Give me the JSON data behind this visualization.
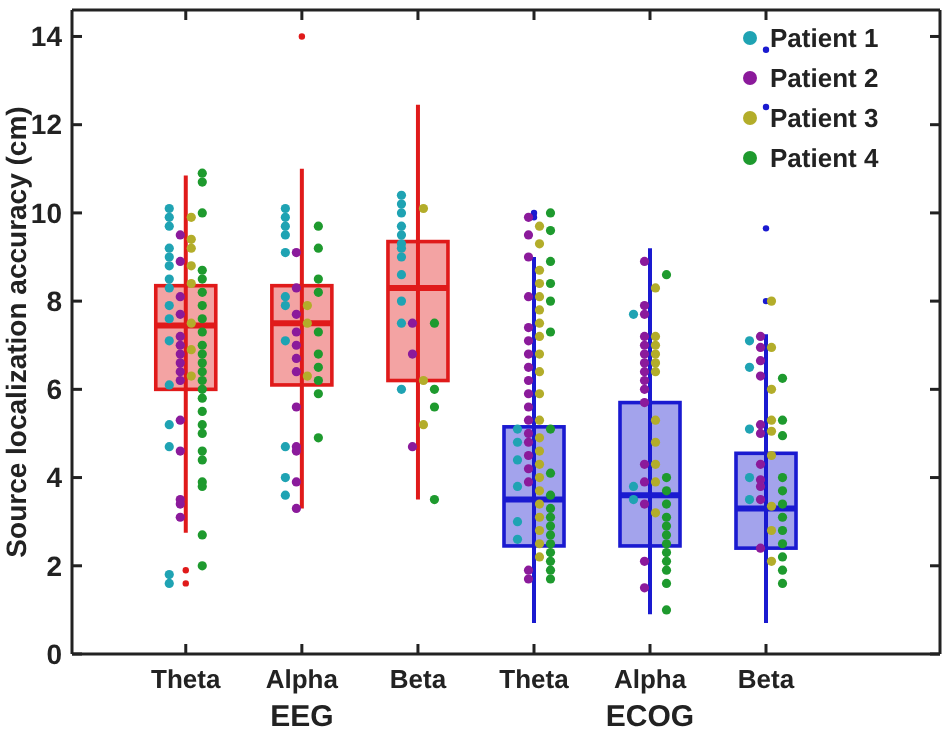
{
  "chart_data": [
    {
      "type": "box",
      "ylabel": "Source localization accuracy (cm)",
      "xlabel": "EEG",
      "categories": [
        "Theta",
        "Alpha",
        "Beta"
      ],
      "ylim": [
        0,
        14.6
      ],
      "yticks": [
        0,
        2,
        4,
        6,
        8,
        10,
        12,
        14
      ],
      "grid": false,
      "series": [
        {
          "colors": [
            "#e01a1a",
            "#e01a1a",
            "#e01a1a"
          ],
          "boxes": [
            {
              "low": 2.75,
              "q1": 6.0,
              "median": 7.45,
              "q3": 8.35,
              "high": 10.85,
              "outliers": [
                1.9,
                1.6
              ]
            },
            {
              "low": 3.3,
              "q1": 6.1,
              "median": 7.5,
              "q3": 8.35,
              "high": 11.0,
              "outliers": [
                14.0
              ]
            },
            {
              "low": 3.5,
              "q1": 6.2,
              "median": 8.3,
              "q3": 9.35,
              "high": 12.45
            }
          ]
        },
        {
          "type": "scatter",
          "color": "#1fa3b3",
          "x": [
            "Theta",
            "Theta",
            "Theta",
            "Theta",
            "Theta",
            "Theta",
            "Theta",
            "Theta",
            "Theta",
            "Theta",
            "Theta",
            "Theta",
            "Theta",
            "Theta",
            "Theta",
            "Theta",
            "Alpha",
            "Alpha",
            "Alpha",
            "Alpha",
            "Alpha",
            "Alpha",
            "Alpha",
            "Alpha",
            "Alpha",
            "Alpha",
            "Alpha",
            "Beta",
            "Beta",
            "Beta",
            "Beta",
            "Beta",
            "Beta",
            "Beta",
            "Beta",
            "Beta",
            "Beta",
            "Beta",
            "Beta"
          ],
          "values": [
            10.1,
            9.9,
            9.7,
            9.2,
            9.0,
            8.8,
            8.5,
            8.3,
            7.9,
            7.6,
            7.1,
            6.1,
            5.2,
            4.7,
            1.8,
            1.6,
            10.1,
            9.9,
            9.7,
            9.5,
            9.1,
            8.1,
            7.9,
            7.1,
            4.7,
            4.0,
            3.6,
            10.4,
            10.2,
            10.0,
            9.7,
            9.5,
            9.3,
            9.2,
            9.0,
            8.6,
            8.0,
            7.5,
            6.0
          ]
        },
        {
          "type": "scatter",
          "color": "#8b1a9b",
          "x": [
            "Theta",
            "Theta",
            "Theta",
            "Theta",
            "Theta",
            "Theta",
            "Theta",
            "Theta",
            "Theta",
            "Theta",
            "Theta",
            "Theta",
            "Theta",
            "Theta",
            "Theta",
            "Alpha",
            "Alpha",
            "Alpha",
            "Alpha",
            "Alpha",
            "Alpha",
            "Alpha",
            "Alpha",
            "Alpha",
            "Alpha",
            "Alpha",
            "Alpha",
            "Beta",
            "Beta",
            "Beta"
          ],
          "values": [
            9.5,
            8.9,
            8.1,
            7.7,
            7.2,
            7.0,
            6.8,
            6.6,
            6.4,
            6.2,
            5.3,
            4.6,
            3.5,
            3.4,
            3.1,
            9.1,
            8.3,
            7.7,
            7.3,
            7.0,
            6.7,
            6.4,
            5.6,
            4.7,
            4.6,
            3.9,
            3.3,
            7.5,
            6.8,
            4.7
          ]
        },
        {
          "type": "scatter",
          "color": "#b3ad2a",
          "x": [
            "Theta",
            "Theta",
            "Theta",
            "Theta",
            "Theta",
            "Theta",
            "Theta",
            "Theta",
            "Alpha",
            "Alpha",
            "Alpha",
            "Beta",
            "Beta",
            "Beta"
          ],
          "values": [
            9.9,
            9.4,
            9.2,
            8.8,
            8.4,
            7.5,
            6.9,
            6.3,
            7.9,
            7.5,
            6.3,
            10.1,
            6.2,
            5.2
          ]
        },
        {
          "type": "scatter",
          "color": "#1e9a2e",
          "x": [
            "Theta",
            "Theta",
            "Theta",
            "Theta",
            "Theta",
            "Theta",
            "Theta",
            "Theta",
            "Theta",
            "Theta",
            "Theta",
            "Theta",
            "Theta",
            "Theta",
            "Theta",
            "Theta",
            "Theta",
            "Theta",
            "Theta",
            "Theta",
            "Theta",
            "Theta",
            "Theta",
            "Theta",
            "Theta",
            "Alpha",
            "Alpha",
            "Alpha",
            "Alpha",
            "Alpha",
            "Alpha",
            "Alpha",
            "Alpha",
            "Alpha",
            "Alpha",
            "Beta",
            "Beta",
            "Beta",
            "Beta"
          ],
          "values": [
            10.9,
            10.7,
            10.0,
            8.7,
            8.5,
            8.2,
            7.9,
            7.6,
            7.3,
            7.0,
            6.8,
            6.6,
            6.4,
            6.2,
            6.0,
            5.8,
            5.5,
            5.2,
            5.0,
            4.6,
            4.4,
            3.9,
            3.8,
            2.7,
            2.0,
            9.7,
            9.2,
            8.5,
            8.2,
            7.3,
            6.8,
            6.5,
            6.2,
            5.9,
            4.9,
            7.5,
            6.0,
            5.6,
            3.5
          ]
        }
      ]
    },
    {
      "type": "box",
      "xlabel": "ECOG",
      "categories": [
        "Theta",
        "Alpha",
        "Beta"
      ],
      "ylim": [
        0,
        14.6
      ],
      "yticks": [
        0,
        2,
        4,
        6,
        8,
        10,
        12,
        14
      ],
      "tick_labels": "x",
      "grid": false,
      "legend": "top right",
      "series": [
        {
          "colors": [
            "#1a1ad0",
            "#1a1ad0",
            "#1a1ad0"
          ],
          "boxes": [
            {
              "low": 0.7,
              "q1": 2.45,
              "median": 3.5,
              "q3": 5.15,
              "high": 9.0,
              "outliers": [
                10.0,
                9.9
              ]
            },
            {
              "low": 0.9,
              "q1": 2.45,
              "median": 3.6,
              "q3": 5.7,
              "high": 9.2
            },
            {
              "low": 0.7,
              "q1": 2.4,
              "median": 3.3,
              "q3": 4.55,
              "high": 7.25,
              "outliers": [
                13.7,
                12.4,
                9.65,
                8.0
              ]
            }
          ]
        },
        {
          "type": "scatter",
          "name": "Patient 1",
          "color": "#1fa3b3",
          "x": [
            "Theta",
            "Theta",
            "Theta",
            "Theta",
            "Theta",
            "Theta",
            "Alpha",
            "Alpha",
            "Alpha",
            "Beta",
            "Beta",
            "Beta",
            "Beta",
            "Beta"
          ],
          "values": [
            5.1,
            4.8,
            4.4,
            3.8,
            3.0,
            2.6,
            7.7,
            3.8,
            3.5,
            7.1,
            6.5,
            5.1,
            4.0,
            3.5
          ]
        },
        {
          "type": "scatter",
          "name": "Patient 2",
          "color": "#8b1a9b",
          "x": [
            "Theta",
            "Theta",
            "Theta",
            "Theta",
            "Theta",
            "Theta",
            "Theta",
            "Theta",
            "Theta",
            "Theta",
            "Theta",
            "Theta",
            "Theta",
            "Theta",
            "Theta",
            "Theta",
            "Theta",
            "Theta",
            "Theta",
            "Alpha",
            "Alpha",
            "Alpha",
            "Alpha",
            "Alpha",
            "Alpha",
            "Alpha",
            "Alpha",
            "Alpha",
            "Alpha",
            "Alpha",
            "Alpha",
            "Alpha",
            "Alpha",
            "Alpha",
            "Alpha",
            "Beta",
            "Beta",
            "Beta",
            "Beta",
            "Beta",
            "Beta",
            "Beta",
            "Beta",
            "Beta",
            "Beta",
            "Beta"
          ],
          "values": [
            9.9,
            9.5,
            9.0,
            8.1,
            7.4,
            7.1,
            6.8,
            6.5,
            6.2,
            5.9,
            5.6,
            5.3,
            5.0,
            4.8,
            4.5,
            4.2,
            3.9,
            1.9,
            1.7,
            8.9,
            7.9,
            7.7,
            7.2,
            7.0,
            6.8,
            6.6,
            6.4,
            6.2,
            6.0,
            5.7,
            4.3,
            3.9,
            3.4,
            2.1,
            1.5,
            7.2,
            6.95,
            6.65,
            6.3,
            5.2,
            5.0,
            4.3,
            3.95,
            3.8,
            3.5,
            2.4
          ]
        },
        {
          "type": "scatter",
          "name": "Patient 3",
          "color": "#b3ad2a",
          "x": [
            "Theta",
            "Theta",
            "Theta",
            "Theta",
            "Theta",
            "Theta",
            "Theta",
            "Theta",
            "Theta",
            "Theta",
            "Theta",
            "Theta",
            "Theta",
            "Theta",
            "Theta",
            "Theta",
            "Theta",
            "Theta",
            "Theta",
            "Theta",
            "Theta",
            "Theta",
            "Alpha",
            "Alpha",
            "Alpha",
            "Alpha",
            "Alpha",
            "Alpha",
            "Alpha",
            "Alpha",
            "Alpha",
            "Alpha",
            "Alpha",
            "Beta",
            "Beta",
            "Beta",
            "Beta",
            "Beta",
            "Beta",
            "Beta",
            "Beta",
            "Beta"
          ],
          "values": [
            9.7,
            9.3,
            8.7,
            8.4,
            8.1,
            7.8,
            7.5,
            7.2,
            6.8,
            6.4,
            5.9,
            5.3,
            4.9,
            4.6,
            4.3,
            4.0,
            3.7,
            3.4,
            3.1,
            2.8,
            2.5,
            2.2,
            8.3,
            7.2,
            7.0,
            6.8,
            6.6,
            6.4,
            5.3,
            4.8,
            4.3,
            3.9,
            3.2,
            8.0,
            6.95,
            6.0,
            5.3,
            5.05,
            4.5,
            3.35,
            2.8,
            2.1
          ]
        },
        {
          "type": "scatter",
          "name": "Patient 4",
          "color": "#1e9a2e",
          "x": [
            "Theta",
            "Theta",
            "Theta",
            "Theta",
            "Theta",
            "Theta",
            "Theta",
            "Theta",
            "Theta",
            "Theta",
            "Theta",
            "Theta",
            "Theta",
            "Theta",
            "Theta",
            "Theta",
            "Theta",
            "Theta",
            "Alpha",
            "Alpha",
            "Alpha",
            "Alpha",
            "Alpha",
            "Alpha",
            "Alpha",
            "Alpha",
            "Alpha",
            "Alpha",
            "Alpha",
            "Alpha",
            "Alpha",
            "Beta",
            "Beta",
            "Beta",
            "Beta",
            "Beta",
            "Beta",
            "Beta",
            "Beta",
            "Beta",
            "Beta",
            "Beta",
            "Beta"
          ],
          "values": [
            10.0,
            9.6,
            8.9,
            8.4,
            8.0,
            7.3,
            5.1,
            4.1,
            3.6,
            3.3,
            3.1,
            2.9,
            2.7,
            2.5,
            2.3,
            2.1,
            1.9,
            1.7,
            8.6,
            4.0,
            3.7,
            3.4,
            3.1,
            2.9,
            2.7,
            2.5,
            2.3,
            2.1,
            1.9,
            1.6,
            1.0,
            6.25,
            5.3,
            4.95,
            4.0,
            3.7,
            3.4,
            3.1,
            2.8,
            2.5,
            2.2,
            1.9,
            1.6
          ]
        }
      ]
    }
  ]
}
